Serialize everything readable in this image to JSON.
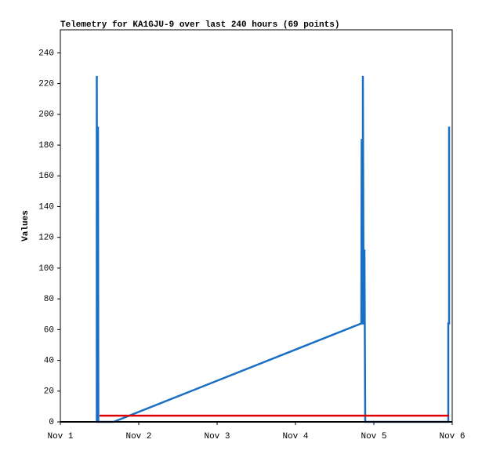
{
  "chart_data": {
    "type": "line",
    "title": "Telemetry for KA1GJU-9 over last 240 hours (69 points)",
    "y_label": "Values",
    "xlim": [
      1,
      6
    ],
    "xticks": [
      {
        "value": 1,
        "label": "Nov 1"
      },
      {
        "value": 2,
        "label": "Nov 2"
      },
      {
        "value": 3,
        "label": "Nov 3"
      },
      {
        "value": 4,
        "label": "Nov 4"
      },
      {
        "value": 5,
        "label": "Nov 5"
      },
      {
        "value": 6,
        "label": "Nov 6"
      }
    ],
    "ylim": [
      0,
      255
    ],
    "yticks": [
      0,
      20,
      40,
      60,
      80,
      100,
      120,
      140,
      160,
      180,
      200,
      220,
      240
    ],
    "series": [
      {
        "color": "#1a6fc4",
        "x": [
          1.465,
          1.465,
          1.47,
          1.48,
          1.48,
          1.485,
          1.68,
          4.84,
          4.845,
          4.85,
          4.86,
          4.86,
          4.87,
          4.88,
          4.88,
          4.89,
          5.95,
          5.95,
          5.955,
          5.96,
          5.96
        ],
        "values": [
          0,
          225,
          0,
          0,
          192,
          0,
          0,
          64,
          184,
          64,
          64,
          225,
          64,
          64,
          112,
          0,
          0,
          64,
          64,
          64,
          192
        ]
      },
      {
        "color": "#e00000",
        "x": [
          1.5,
          5.96
        ],
        "values": [
          4,
          4
        ]
      }
    ]
  }
}
